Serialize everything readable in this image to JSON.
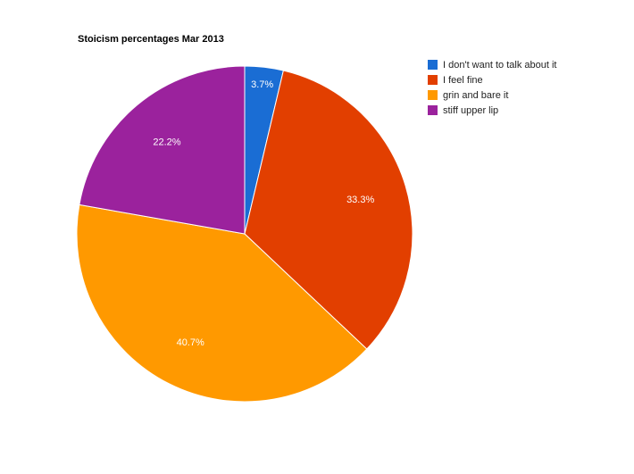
{
  "chart_data": {
    "type": "pie",
    "title": "Stoicism percentages Mar 2013",
    "categories": [
      "I don't want to talk about it",
      "I feel fine",
      "grin and bare it",
      "stiff upper lip"
    ],
    "values": [
      3.7,
      33.3,
      40.7,
      22.2
    ],
    "labels": [
      "3.7%",
      "33.3%",
      "40.7%",
      "22.2%"
    ],
    "colors": [
      "#1a6dd4",
      "#e23f00",
      "#ff9900",
      "#9b229d"
    ],
    "legend_position": "right",
    "start_angle": "12 o'clock, clockwise"
  },
  "legend": {
    "items": [
      {
        "label": "I don't want to talk about it",
        "color": "#1a6dd4"
      },
      {
        "label": "I feel fine",
        "color": "#e23f00"
      },
      {
        "label": "grin and bare it",
        "color": "#ff9900"
      },
      {
        "label": "stiff upper lip",
        "color": "#9b229d"
      }
    ]
  }
}
